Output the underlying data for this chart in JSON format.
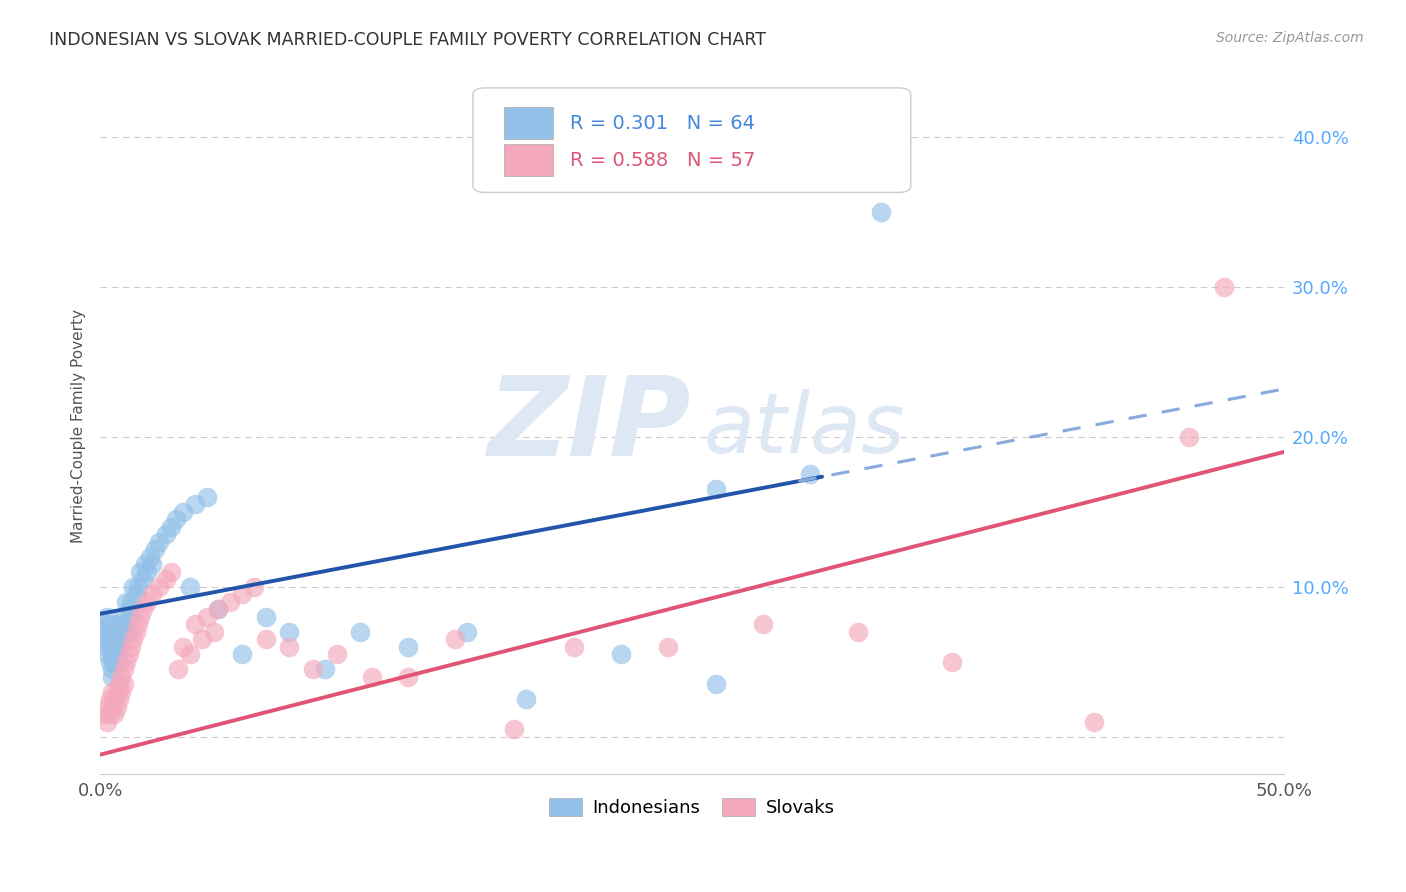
{
  "title": "INDONESIAN VS SLOVAK MARRIED-COUPLE FAMILY POVERTY CORRELATION CHART",
  "source": "Source: ZipAtlas.com",
  "ylabel": "Married-Couple Family Poverty",
  "xlim": [
    0.0,
    0.5
  ],
  "ylim": [
    -0.025,
    0.44
  ],
  "x_ticks": [
    0.0,
    0.1,
    0.2,
    0.3,
    0.4,
    0.5
  ],
  "x_tick_labels": [
    "0.0%",
    "",
    "",
    "",
    "",
    "50.0%"
  ],
  "y_ticks": [
    0.0,
    0.1,
    0.2,
    0.3,
    0.4
  ],
  "y_tick_labels": [
    "",
    "10.0%",
    "20.0%",
    "30.0%",
    "40.0%"
  ],
  "indonesian_color": "#92c0e8",
  "slovak_color": "#f4a8bc",
  "indonesian_line_color": "#2255aa",
  "indonesian_line_dash_color": "#88aadd",
  "slovak_line_color": "#e05575",
  "indonesian_R": 0.301,
  "indonesian_N": 64,
  "slovak_R": 0.588,
  "slovak_N": 57,
  "watermark_zip": "ZIP",
  "watermark_atlas": "atlas",
  "background_color": "#ffffff",
  "grid_color": "#cccccc",
  "indonesian_x": [
    0.001,
    0.002,
    0.002,
    0.003,
    0.003,
    0.003,
    0.004,
    0.004,
    0.004,
    0.005,
    0.005,
    0.005,
    0.005,
    0.006,
    0.006,
    0.006,
    0.007,
    0.007,
    0.007,
    0.008,
    0.008,
    0.008,
    0.009,
    0.009,
    0.01,
    0.01,
    0.011,
    0.011,
    0.012,
    0.012,
    0.013,
    0.013,
    0.014,
    0.015,
    0.016,
    0.017,
    0.018,
    0.019,
    0.02,
    0.021,
    0.022,
    0.023,
    0.025,
    0.028,
    0.03,
    0.032,
    0.035,
    0.038,
    0.04,
    0.045,
    0.05,
    0.06,
    0.07,
    0.08,
    0.095,
    0.11,
    0.13,
    0.155,
    0.18,
    0.22,
    0.26,
    0.3,
    0.33,
    0.26
  ],
  "indonesian_y": [
    0.07,
    0.075,
    0.065,
    0.08,
    0.06,
    0.055,
    0.075,
    0.065,
    0.05,
    0.06,
    0.055,
    0.045,
    0.04,
    0.07,
    0.06,
    0.05,
    0.075,
    0.065,
    0.055,
    0.07,
    0.06,
    0.05,
    0.075,
    0.065,
    0.08,
    0.07,
    0.09,
    0.075,
    0.085,
    0.07,
    0.09,
    0.08,
    0.1,
    0.095,
    0.1,
    0.11,
    0.105,
    0.115,
    0.11,
    0.12,
    0.115,
    0.125,
    0.13,
    0.135,
    0.14,
    0.145,
    0.15,
    0.1,
    0.155,
    0.16,
    0.085,
    0.055,
    0.08,
    0.07,
    0.045,
    0.07,
    0.06,
    0.07,
    0.025,
    0.055,
    0.035,
    0.175,
    0.35,
    0.165
  ],
  "slovak_x": [
    0.002,
    0.003,
    0.003,
    0.004,
    0.004,
    0.005,
    0.005,
    0.006,
    0.006,
    0.007,
    0.007,
    0.008,
    0.008,
    0.009,
    0.009,
    0.01,
    0.01,
    0.011,
    0.012,
    0.013,
    0.014,
    0.015,
    0.016,
    0.017,
    0.018,
    0.02,
    0.022,
    0.025,
    0.028,
    0.03,
    0.033,
    0.035,
    0.038,
    0.04,
    0.043,
    0.045,
    0.048,
    0.05,
    0.055,
    0.06,
    0.065,
    0.07,
    0.08,
    0.09,
    0.1,
    0.115,
    0.13,
    0.15,
    0.175,
    0.2,
    0.24,
    0.28,
    0.32,
    0.36,
    0.42,
    0.46,
    0.475
  ],
  "slovak_y": [
    0.015,
    0.01,
    0.02,
    0.025,
    0.015,
    0.02,
    0.03,
    0.015,
    0.025,
    0.02,
    0.03,
    0.025,
    0.035,
    0.03,
    0.04,
    0.045,
    0.035,
    0.05,
    0.055,
    0.06,
    0.065,
    0.07,
    0.075,
    0.08,
    0.085,
    0.09,
    0.095,
    0.1,
    0.105,
    0.11,
    0.045,
    0.06,
    0.055,
    0.075,
    0.065,
    0.08,
    0.07,
    0.085,
    0.09,
    0.095,
    0.1,
    0.065,
    0.06,
    0.045,
    0.055,
    0.04,
    0.04,
    0.065,
    0.005,
    0.06,
    0.06,
    0.075,
    0.07,
    0.05,
    0.01,
    0.2,
    0.3
  ]
}
